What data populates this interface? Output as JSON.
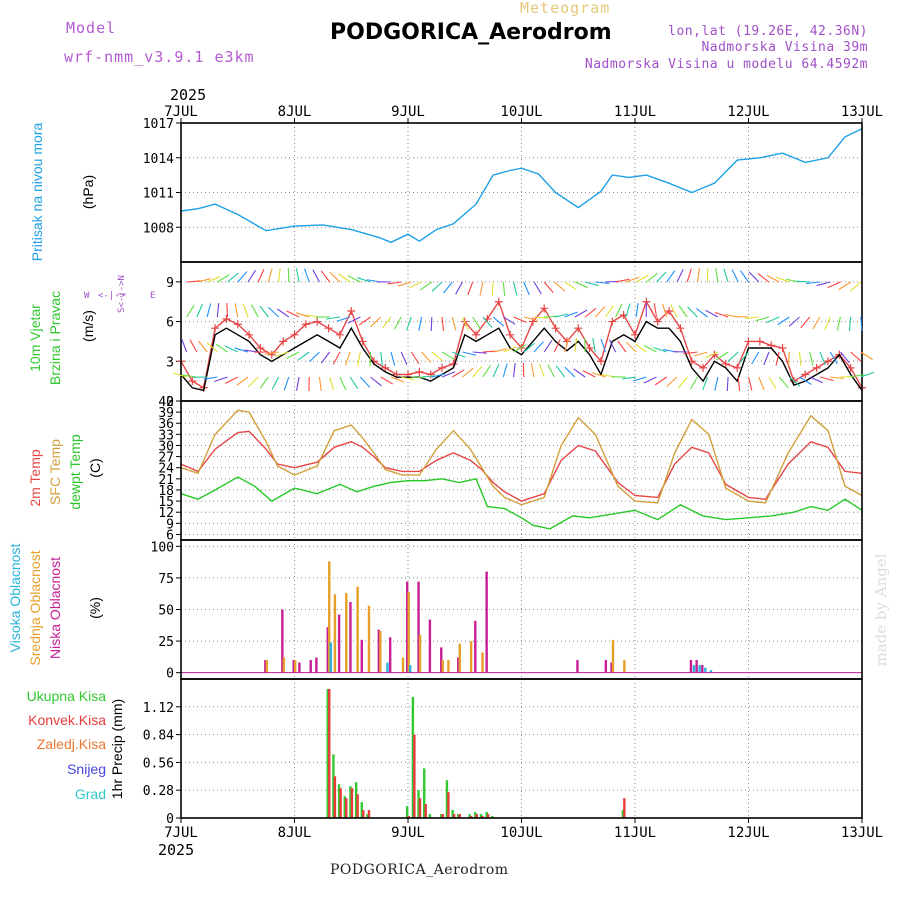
{
  "header": {
    "model_label": "Model",
    "model_name": "wrf-nmm_v3.9.1 e3km",
    "subtitle": "Meteogram",
    "title": "PODGORICA_Aerodrom",
    "lonlat": "lon,lat (19.26E, 42.36N)",
    "elevation": "Nadmorska Visina 39m",
    "model_elevation": "Nadmorska Visina u modelu 64.4592m",
    "footer_station": "PODGORICA_Aerodrom",
    "credit": "made by Angel"
  },
  "colors": {
    "pressure": "#1ea0e6",
    "wind_speed": "#e64646",
    "wind_gust": "#000000",
    "temp2m": "#e64646",
    "sfc_temp": "#d2a03c",
    "dewpoint": "#28c828",
    "high_cloud": "#28b4dc",
    "mid_cloud": "#e6a028",
    "low_cloud": "#c81e96",
    "precip_total": "#32c832",
    "precip_convective": "#e63c3c",
    "precip_frozen": "#e67832",
    "snow": "#4646dc",
    "graupel": "#32c8c8",
    "model_label": "#b45ad2",
    "lonlat": "#a050c8",
    "subtitle": "#e6c878"
  },
  "time_axis": {
    "year": "2025",
    "labels": [
      "7JUL",
      "8JUL",
      "9JUL",
      "10JUL",
      "11JUL",
      "12JUL",
      "13JUL"
    ],
    "x_range_days": [
      0,
      6
    ]
  },
  "chart_data": [
    {
      "type": "line",
      "id": "pressure",
      "ylabel_line1": "Pritisak na nivou mora",
      "unit": "(hPa)",
      "ylim": [
        1005,
        1017
      ],
      "yticks": [
        1008,
        1011,
        1014,
        1017
      ],
      "grid": true,
      "series": [
        {
          "name": "Pritisak na nivou mora",
          "color_key": "pressure",
          "x": [
            0,
            0.15,
            0.3,
            0.5,
            0.75,
            1.0,
            1.25,
            1.5,
            1.75,
            1.85,
            2.0,
            2.1,
            2.25,
            2.4,
            2.6,
            2.75,
            2.9,
            3.0,
            3.15,
            3.3,
            3.5,
            3.7,
            3.8,
            3.95,
            4.1,
            4.3,
            4.5,
            4.7,
            4.9,
            5.1,
            5.3,
            5.5,
            5.7,
            5.85,
            6.0
          ],
          "values": [
            1009.4,
            1009.6,
            1010.0,
            1009.1,
            1007.7,
            1008.1,
            1008.2,
            1007.8,
            1007.1,
            1006.7,
            1007.4,
            1006.8,
            1007.8,
            1008.3,
            1010.0,
            1012.5,
            1012.9,
            1013.1,
            1012.6,
            1011.0,
            1009.7,
            1011.1,
            1012.5,
            1012.3,
            1012.5,
            1011.8,
            1011.0,
            1011.8,
            1013.8,
            1014.0,
            1014.4,
            1013.6,
            1014.0,
            1015.8,
            1016.5
          ]
        }
      ]
    },
    {
      "type": "line",
      "id": "wind",
      "ylabel_line1": "10m Vjetar",
      "ylabel_line2": "Brzina i Pravac",
      "unit": "(m/s)",
      "compass": {
        "north": "N",
        "south": "S",
        "west": "W",
        "east": "E"
      },
      "ylim": [
        0,
        10.5
      ],
      "yticks": [
        0,
        3,
        6,
        9
      ],
      "grid": true,
      "series": [
        {
          "name": "Brzina vjetra",
          "color_key": "wind_speed",
          "marker": "+",
          "x": [
            0,
            0.1,
            0.2,
            0.3,
            0.4,
            0.5,
            0.6,
            0.7,
            0.8,
            0.9,
            1.0,
            1.1,
            1.2,
            1.3,
            1.4,
            1.5,
            1.6,
            1.7,
            1.8,
            1.9,
            2.0,
            2.1,
            2.2,
            2.3,
            2.4,
            2.5,
            2.6,
            2.7,
            2.8,
            2.9,
            3.0,
            3.1,
            3.2,
            3.3,
            3.4,
            3.5,
            3.6,
            3.7,
            3.8,
            3.9,
            4.0,
            4.1,
            4.2,
            4.3,
            4.4,
            4.5,
            4.6,
            4.7,
            4.8,
            4.9,
            5.0,
            5.1,
            5.2,
            5.3,
            5.4,
            5.5,
            5.6,
            5.7,
            5.8,
            5.9,
            6.0
          ],
          "values": [
            3.0,
            1.5,
            1.0,
            5.5,
            6.2,
            5.8,
            5.0,
            4.0,
            3.5,
            4.5,
            5.0,
            5.8,
            6.0,
            5.5,
            5.0,
            6.8,
            4.5,
            3.0,
            2.5,
            2.0,
            2.0,
            2.2,
            2.0,
            2.5,
            2.8,
            6.0,
            5.0,
            6.2,
            7.5,
            5.0,
            4.0,
            6.0,
            7.0,
            5.5,
            4.5,
            5.5,
            4.0,
            3.0,
            6.0,
            6.5,
            5.0,
            7.5,
            6.0,
            6.8,
            5.5,
            3.0,
            2.5,
            3.5,
            2.8,
            2.5,
            4.5,
            4.5,
            4.2,
            4.0,
            1.5,
            2.0,
            2.5,
            3.0,
            3.5,
            2.5,
            1.0
          ]
        },
        {
          "name": "Udari vjetra",
          "color_key": "wind_gust",
          "x": [
            0,
            0.1,
            0.2,
            0.3,
            0.4,
            0.5,
            0.6,
            0.7,
            0.8,
            0.9,
            1.0,
            1.1,
            1.2,
            1.3,
            1.4,
            1.5,
            1.6,
            1.7,
            1.8,
            1.9,
            2.0,
            2.1,
            2.2,
            2.3,
            2.4,
            2.5,
            2.6,
            2.7,
            2.8,
            2.9,
            3.0,
            3.1,
            3.2,
            3.3,
            3.4,
            3.5,
            3.6,
            3.7,
            3.8,
            3.9,
            4.0,
            4.1,
            4.2,
            4.3,
            4.4,
            4.5,
            4.6,
            4.7,
            4.8,
            4.9,
            5.0,
            5.1,
            5.2,
            5.3,
            5.4,
            5.5,
            5.6,
            5.7,
            5.8,
            5.9,
            6.0
          ],
          "values": [
            2.0,
            1.0,
            0.8,
            5.0,
            5.5,
            5.0,
            4.5,
            3.5,
            3.0,
            3.5,
            4.0,
            4.5,
            5.0,
            4.5,
            4.0,
            5.5,
            4.0,
            2.8,
            2.2,
            1.8,
            1.8,
            1.8,
            1.5,
            2.0,
            2.5,
            5.0,
            4.5,
            5.0,
            5.5,
            4.0,
            3.5,
            4.5,
            5.5,
            4.5,
            3.8,
            4.5,
            3.5,
            2.0,
            4.5,
            5.0,
            4.5,
            6.0,
            5.5,
            5.5,
            4.5,
            2.5,
            1.5,
            3.0,
            2.5,
            1.5,
            4.0,
            4.0,
            4.0,
            3.0,
            1.2,
            1.5,
            2.0,
            2.5,
            3.5,
            2.0,
            0.8
          ]
        }
      ]
    },
    {
      "type": "line",
      "id": "temperature",
      "ylabels": [
        "2m Temp",
        "SFC Temp",
        "dewpt Temp"
      ],
      "unit": "(C)",
      "ylim": [
        4.5,
        42
      ],
      "yticks": [
        6,
        9,
        12,
        15,
        18,
        21,
        24,
        27,
        30,
        33,
        36,
        39,
        42
      ],
      "grid": true,
      "series": [
        {
          "name": "2m Temp",
          "color_key": "temp2m",
          "x": [
            0,
            0.15,
            0.3,
            0.5,
            0.6,
            0.75,
            0.85,
            1.0,
            1.2,
            1.35,
            1.5,
            1.6,
            1.7,
            1.8,
            1.95,
            2.1,
            2.25,
            2.4,
            2.55,
            2.65,
            2.75,
            2.85,
            3.0,
            3.2,
            3.35,
            3.5,
            3.65,
            3.85,
            4.0,
            4.2,
            4.35,
            4.5,
            4.65,
            4.8,
            5.0,
            5.15,
            5.35,
            5.55,
            5.7,
            5.85,
            6.0
          ],
          "values": [
            25.0,
            23.0,
            29.0,
            33.5,
            33.8,
            29.0,
            25.0,
            24.0,
            25.5,
            29.5,
            31.0,
            29.5,
            27.0,
            24.0,
            23.0,
            23.0,
            26.0,
            28.0,
            26.0,
            23.5,
            20.0,
            17.5,
            15.0,
            17.0,
            26.0,
            30.0,
            28.5,
            20.0,
            16.5,
            16.0,
            25.0,
            29.5,
            28.0,
            19.5,
            16.0,
            15.5,
            25.0,
            31.0,
            29.5,
            23.0,
            22.5
          ]
        },
        {
          "name": "SFC Temp",
          "color_key": "sfc_temp",
          "x": [
            0,
            0.15,
            0.3,
            0.5,
            0.6,
            0.75,
            0.85,
            1.0,
            1.2,
            1.35,
            1.5,
            1.6,
            1.7,
            1.8,
            1.95,
            2.1,
            2.25,
            2.4,
            2.55,
            2.65,
            2.75,
            2.85,
            3.0,
            3.2,
            3.35,
            3.5,
            3.65,
            3.85,
            4.0,
            4.2,
            4.35,
            4.5,
            4.65,
            4.8,
            5.0,
            5.15,
            5.35,
            5.55,
            5.7,
            5.85,
            6.0
          ],
          "values": [
            24.0,
            22.5,
            33.0,
            39.5,
            39.0,
            31.0,
            24.5,
            22.0,
            24.5,
            34.0,
            35.5,
            32.0,
            28.0,
            23.5,
            22.0,
            22.0,
            29.0,
            34.0,
            29.0,
            24.0,
            19.0,
            16.0,
            14.0,
            16.0,
            30.0,
            37.5,
            33.0,
            19.0,
            15.0,
            14.5,
            28.0,
            37.0,
            33.0,
            18.5,
            15.0,
            14.5,
            28.0,
            38.0,
            34.0,
            19.0,
            16.5
          ]
        },
        {
          "name": "dewpt Temp",
          "color_key": "dewpoint",
          "x": [
            0,
            0.15,
            0.3,
            0.5,
            0.65,
            0.8,
            1.0,
            1.2,
            1.4,
            1.55,
            1.7,
            1.85,
            2.0,
            2.15,
            2.3,
            2.45,
            2.6,
            2.7,
            2.85,
            3.0,
            3.1,
            3.25,
            3.45,
            3.6,
            3.8,
            4.0,
            4.2,
            4.4,
            4.6,
            4.8,
            5.0,
            5.2,
            5.4,
            5.55,
            5.7,
            5.85,
            6.0
          ],
          "values": [
            17.0,
            15.5,
            18.0,
            21.5,
            19.0,
            15.0,
            18.5,
            17.0,
            19.5,
            17.5,
            19.0,
            20.0,
            20.5,
            20.5,
            21.0,
            20.0,
            21.0,
            13.5,
            13.0,
            10.5,
            8.5,
            7.5,
            11.0,
            10.5,
            11.5,
            12.5,
            10.0,
            14.0,
            11.0,
            10.0,
            10.5,
            11.0,
            12.0,
            13.5,
            12.5,
            15.5,
            12.5
          ]
        }
      ]
    },
    {
      "type": "bar",
      "id": "clouds",
      "ylabels": [
        "Visoka Oblacnost",
        "Srednja Oblacnost",
        "Niska Oblacnost"
      ],
      "unit": "(%)",
      "ylim": [
        -5,
        105
      ],
      "yticks": [
        0,
        25,
        50,
        75,
        100
      ],
      "grid": true,
      "series": [
        {
          "name": "Niska Oblacnost",
          "color_key": "low_cloud",
          "offset": 0,
          "x": [
            0.75,
            0.9,
            1.0,
            1.05,
            1.15,
            1.2,
            1.3,
            1.4,
            1.5,
            1.6,
            1.75,
            1.85,
            2.0,
            2.1,
            2.2,
            2.3,
            2.45,
            2.6,
            2.7,
            3.5,
            3.75,
            3.8,
            4.5,
            4.55,
            4.6
          ],
          "values": [
            10,
            50,
            10,
            8,
            10,
            12,
            36,
            46,
            56,
            26,
            34,
            28,
            72,
            72,
            42,
            20,
            12,
            41,
            80,
            10,
            10,
            8,
            10,
            10,
            6
          ]
        },
        {
          "name": "Srednja Oblacnost",
          "color_key": "mid_cloud",
          "offset": 3,
          "x": [
            0.75,
            0.9,
            1.0,
            1.3,
            1.35,
            1.45,
            1.55,
            1.65,
            1.75,
            1.95,
            2.0,
            2.1,
            2.3,
            2.35,
            2.45,
            2.55,
            2.65,
            3.8,
            3.9
          ],
          "values": [
            10,
            12,
            10,
            88,
            62,
            63,
            68,
            53,
            33,
            12,
            64,
            30,
            10,
            10,
            23,
            25,
            16,
            26,
            10
          ]
        },
        {
          "name": "Visoka Oblacnost",
          "color_key": "high_cloud",
          "offset": 6,
          "x": [
            1.3,
            1.8,
            2.0,
            4.5,
            4.55,
            4.6,
            4.65
          ],
          "values": [
            24,
            8,
            6,
            6,
            6,
            4,
            2
          ]
        }
      ]
    },
    {
      "type": "bar",
      "id": "precip",
      "legend": [
        "Ukupna Kisa",
        "Konvek.Kisa",
        "Zaledj.Kisa",
        "Snijeg",
        "Grad"
      ],
      "ylabel": "1hr Precip",
      "unit": "(mm)",
      "ylim": [
        0,
        1.4
      ],
      "yticks": [
        0,
        0.28,
        0.56,
        0.84,
        1.12
      ],
      "grid": true,
      "series": [
        {
          "name": "Ukupna Kisa",
          "color_key": "precip_total",
          "offset": 0,
          "x": [
            1.3,
            1.35,
            1.4,
            1.45,
            1.5,
            1.55,
            1.6,
            1.65,
            2.0,
            2.05,
            2.1,
            2.15,
            2.2,
            2.3,
            2.35,
            2.4,
            2.45,
            2.55,
            2.6,
            2.65,
            2.7,
            2.75,
            3.9
          ],
          "values": [
            1.3,
            0.64,
            0.34,
            0.22,
            0.32,
            0.36,
            0.16,
            0.04,
            0.12,
            1.22,
            0.28,
            0.5,
            0.04,
            0.04,
            0.38,
            0.08,
            0.04,
            0.04,
            0.06,
            0.04,
            0.06,
            0.02,
            0.08
          ]
        },
        {
          "name": "Konvek.Kisa",
          "color_key": "precip_convective",
          "offset": 3,
          "x": [
            1.3,
            1.35,
            1.4,
            1.45,
            1.5,
            1.55,
            1.6,
            1.65,
            2.0,
            2.05,
            2.1,
            2.15,
            2.3,
            2.35,
            2.4,
            2.45,
            2.55,
            2.6,
            2.65,
            2.7,
            3.9
          ],
          "values": [
            1.3,
            0.42,
            0.3,
            0.2,
            0.3,
            0.24,
            0.08,
            0.08,
            0.02,
            0.84,
            0.2,
            0.14,
            0.04,
            0.26,
            0.04,
            0.04,
            0.02,
            0.04,
            0.02,
            0.04,
            0.2
          ]
        }
      ]
    }
  ]
}
